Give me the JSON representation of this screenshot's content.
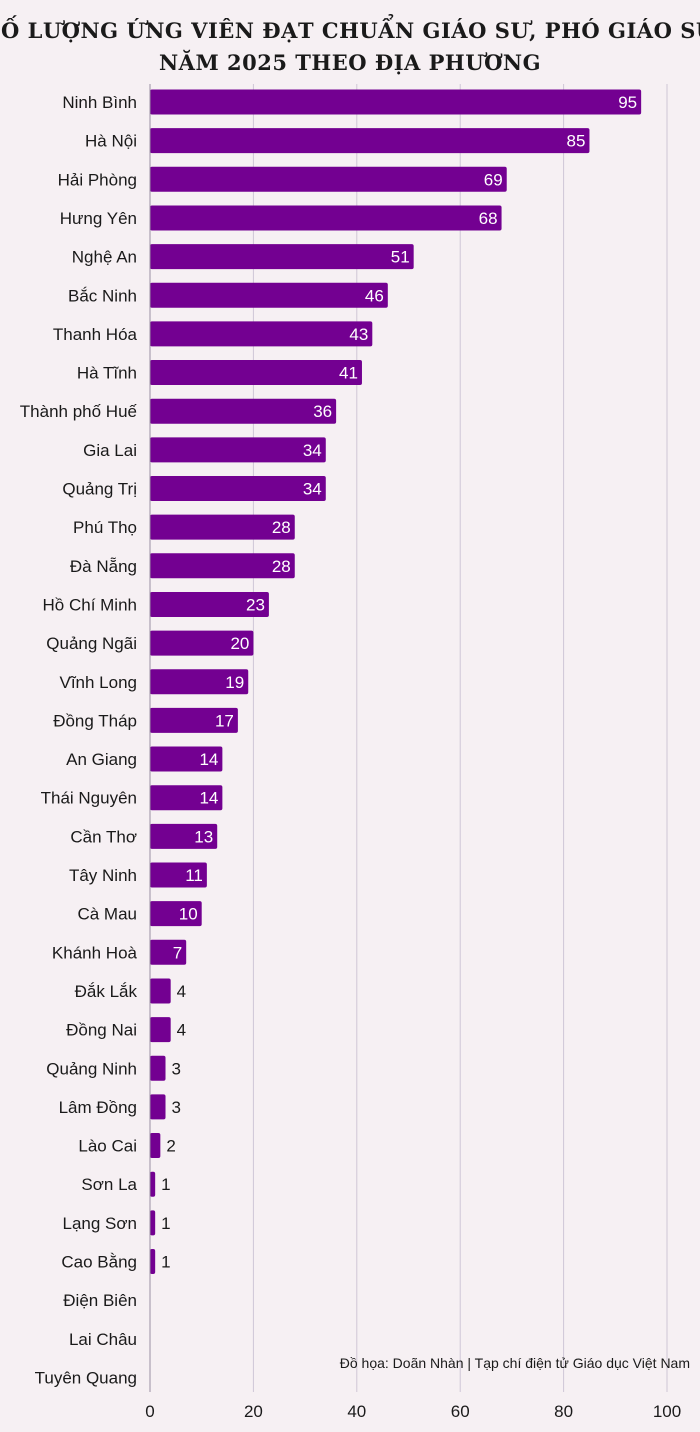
{
  "chart_data": {
    "type": "bar",
    "orientation": "horizontal",
    "title": [
      "SỐ LƯỢNG ỨNG VIÊN ĐẠT CHUẨN GIÁO SƯ, PHÓ GIÁO SƯ",
      "NĂM 2025 THEO ĐỊA PHƯƠNG"
    ],
    "categories": [
      "Ninh Bình",
      "Hà Nội",
      "Hải Phòng",
      "Hưng Yên",
      "Nghệ An",
      "Bắc Ninh",
      "Thanh Hóa",
      "Hà Tĩnh",
      "Thành phố Huế",
      "Gia Lai",
      "Quảng Trị",
      "Phú Thọ",
      "Đà Nẵng",
      "Hồ Chí Minh",
      "Quảng Ngãi",
      "Vĩnh Long",
      "Đồng Tháp",
      "An Giang",
      "Thái Nguyên",
      "Cần Thơ",
      "Tây Ninh",
      "Cà Mau",
      "Khánh Hoà",
      "Đắk Lắk",
      "Đồng Nai",
      "Quảng Ninh",
      "Lâm Đồng",
      "Lào Cai",
      "Sơn La",
      "Lạng Sơn",
      "Cao Bằng",
      "Điện Biên",
      "Lai Châu",
      "Tuyên Quang"
    ],
    "values": [
      95,
      85,
      69,
      68,
      51,
      46,
      43,
      41,
      36,
      34,
      34,
      28,
      28,
      23,
      20,
      19,
      17,
      14,
      14,
      13,
      11,
      10,
      7,
      4,
      4,
      3,
      3,
      2,
      1,
      1,
      1,
      null,
      null,
      null
    ],
    "xlim": [
      0,
      100
    ],
    "xticks": [
      0,
      20,
      40,
      60,
      80,
      100
    ],
    "grid": true,
    "bar_color": "#730091",
    "source": "Đồ họa: Doãn Nhàn | Tạp chí điện tử Giáo dục Việt Nam"
  }
}
